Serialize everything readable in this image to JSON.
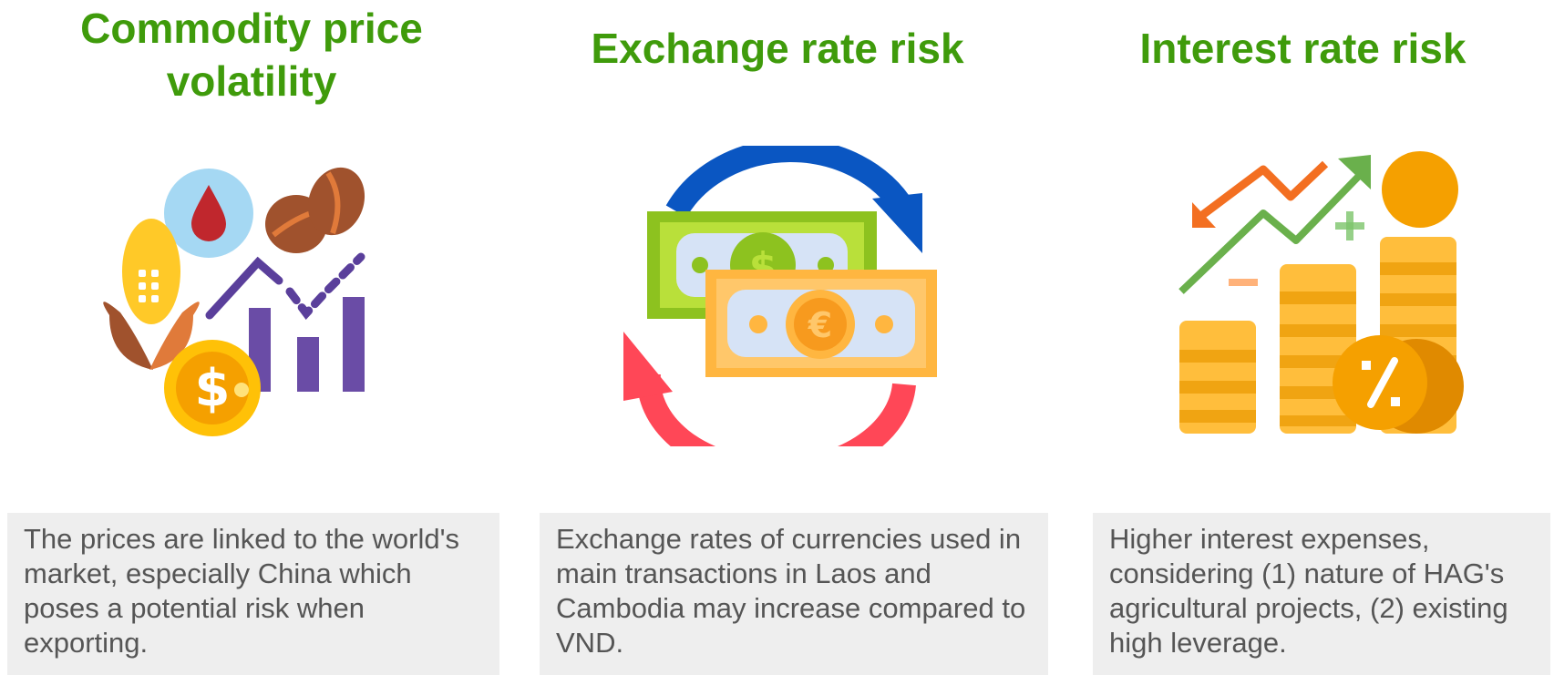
{
  "columns": [
    {
      "title": "Commodity price volatility",
      "icon": "commodity-price-icon",
      "description": "The prices are linked to the world's market, especially China which poses a potential risk when exporting."
    },
    {
      "title": "Exchange rate risk",
      "icon": "currency-exchange-icon",
      "description": "Exchange rates of currencies used in main transactions in Laos and Cambodia may increase compared to VND."
    },
    {
      "title": "Interest rate risk",
      "icon": "interest-rate-icon",
      "description": "Higher interest expenses, considering (1) nature of HAG's agricultural projects, (2) existing high leverage."
    }
  ],
  "colors": {
    "title_green": "#3f9b0b",
    "description_background": "#eeeeee",
    "description_text": "#555555"
  }
}
